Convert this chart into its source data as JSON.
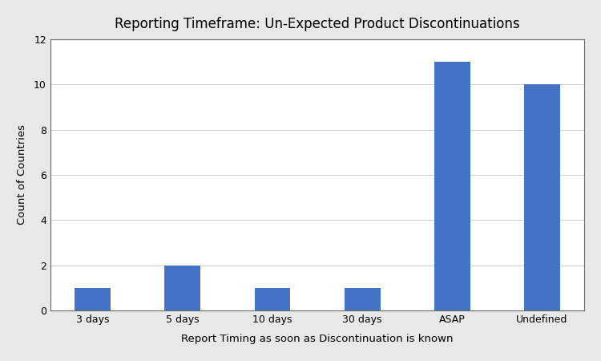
{
  "title": "Reporting Timeframe: Un-Expected Product Discontinuations",
  "xlabel": "Report Timing as soon as Discontinuation is known",
  "ylabel": "Count of Countries",
  "categories": [
    "3 days",
    "5 days",
    "10 days",
    "30 days",
    "ASAP",
    "Undefined"
  ],
  "values": [
    1,
    2,
    1,
    1,
    11,
    10
  ],
  "bar_color": "#4472C4",
  "ylim": [
    0,
    12
  ],
  "yticks": [
    0,
    2,
    4,
    6,
    8,
    10,
    12
  ],
  "figure_background": "#e8e8e8",
  "plot_background": "#ffffff",
  "grid_color": "#d0d0d0",
  "spine_color": "#666666",
  "title_fontsize": 12,
  "label_fontsize": 9.5,
  "tick_fontsize": 9,
  "bar_width": 0.4
}
